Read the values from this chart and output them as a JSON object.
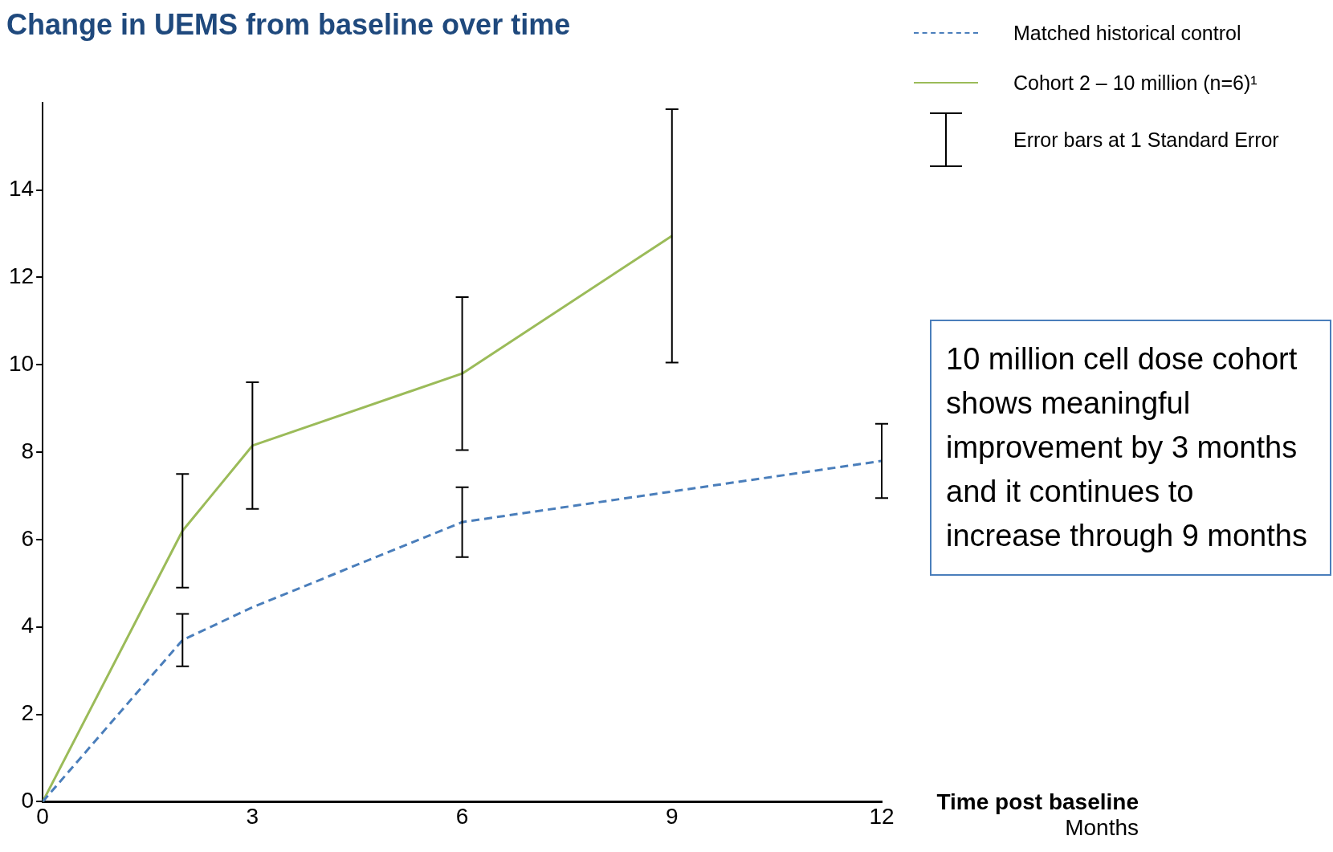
{
  "chart_data": {
    "type": "line",
    "title": "Change in UEMS from baseline over time",
    "xlabel": "Time post baseline",
    "xlim": [
      0,
      12
    ],
    "xticks": [
      0,
      3,
      6,
      9,
      12
    ],
    "ylim": [
      0,
      16
    ],
    "yticks": [
      0,
      2,
      4,
      6,
      8,
      10,
      12,
      14
    ],
    "grid": false,
    "legend": "top right",
    "marker": "none",
    "series": [
      {
        "name": "Matched historical control",
        "color": "#4a7ebb",
        "line_style": "dashed",
        "x": [
          0,
          2,
          3,
          6,
          12
        ],
        "values": [
          0,
          3.7,
          4.45,
          6.4,
          7.8
        ],
        "errors": [
          null,
          0.6,
          null,
          0.8,
          0.85
        ]
      },
      {
        "name": "Cohort 2 – 10 million (n=6)¹",
        "color": "#9bbb59",
        "line_style": "solid",
        "x": [
          0,
          2,
          3,
          6,
          9
        ],
        "values": [
          0,
          6.2,
          8.15,
          9.8,
          12.95
        ],
        "errors": [
          null,
          1.3,
          1.45,
          1.75,
          2.9
        ]
      }
    ],
    "annotations": [
      "Months",
      "Error bars at 1 Standard Error",
      "10 million cell dose cohort shows meaningful improvement by 3 months and it continues to increase through 9 months"
    ]
  }
}
